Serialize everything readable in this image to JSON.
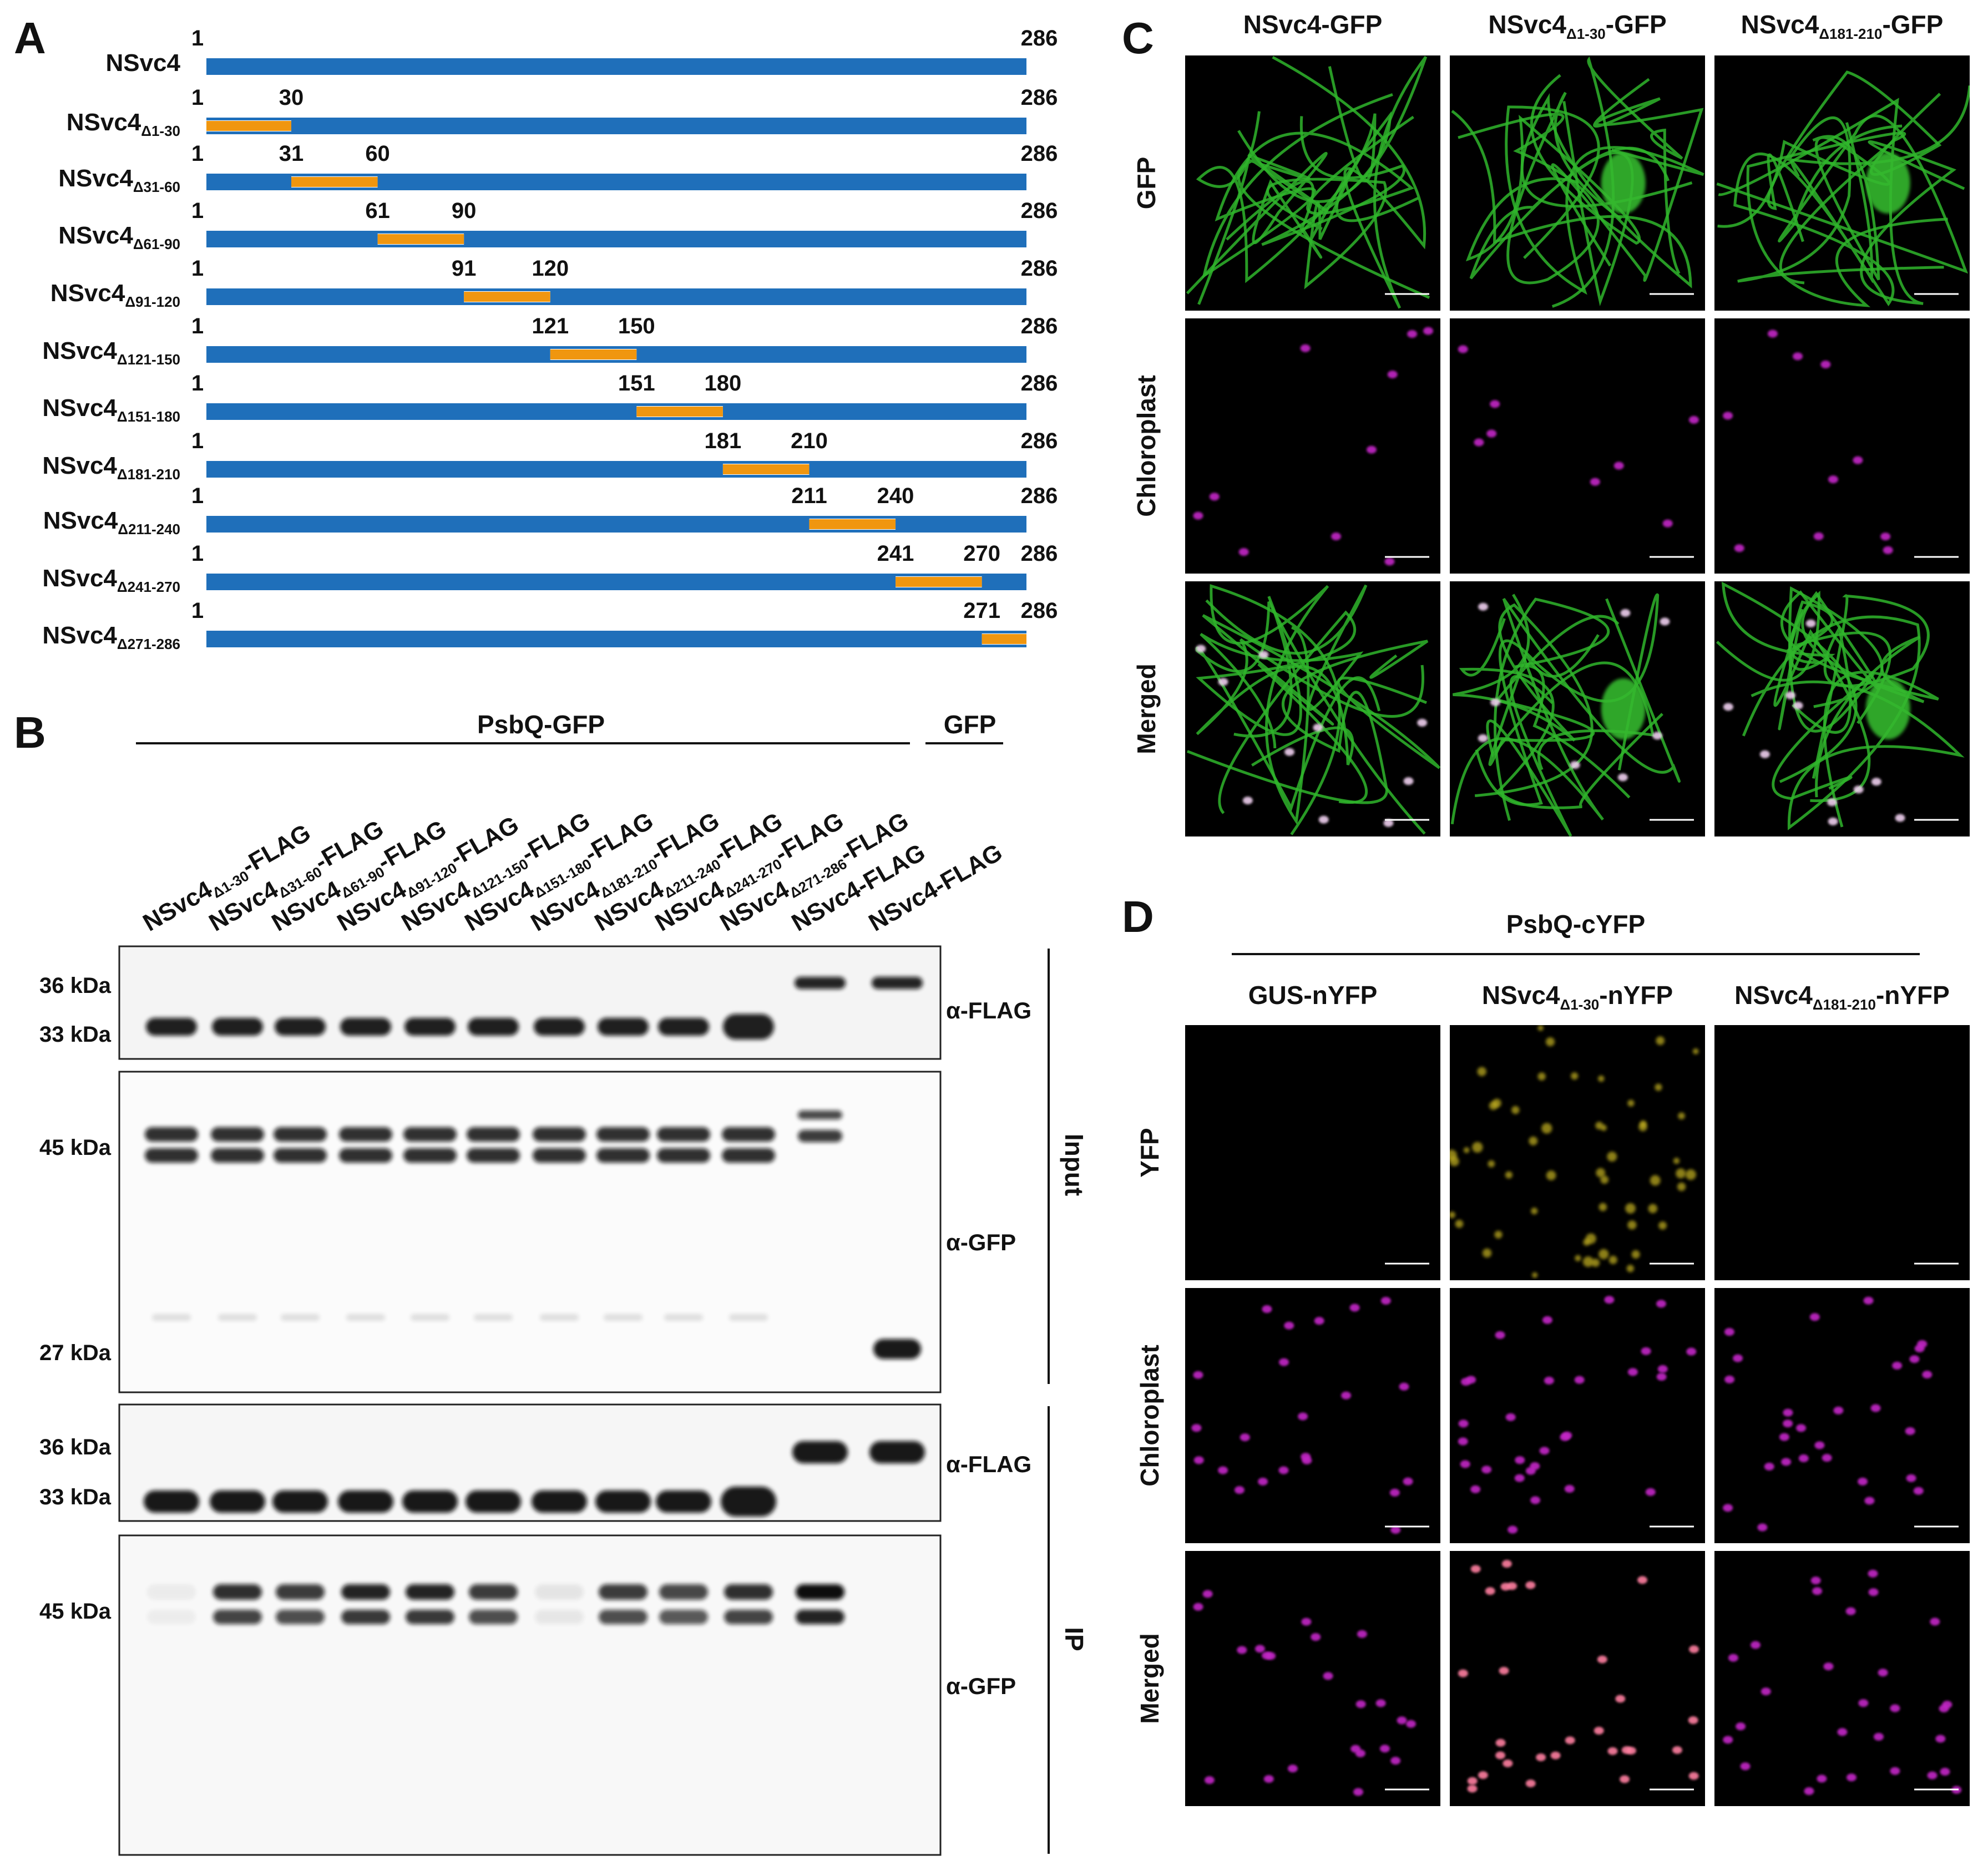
{
  "panel_letters": [
    "A",
    "B",
    "C",
    "D"
  ],
  "panelA": {
    "rows": [
      {
        "name": "NSvc4",
        "sub": "",
        "start": 1,
        "end": 286,
        "del": null
      },
      {
        "name": "NSvc4",
        "sub": "Δ1-30",
        "start": 1,
        "end": 286,
        "del": [
          1,
          30
        ]
      },
      {
        "name": "NSvc4",
        "sub": "Δ31-60",
        "start": 1,
        "end": 286,
        "del": [
          31,
          60
        ]
      },
      {
        "name": "NSvc4",
        "sub": "Δ61-90",
        "start": 1,
        "end": 286,
        "del": [
          61,
          90
        ]
      },
      {
        "name": "NSvc4",
        "sub": "Δ91-120",
        "start": 1,
        "end": 286,
        "del": [
          91,
          120
        ]
      },
      {
        "name": "NSvc4",
        "sub": "Δ121-150",
        "start": 1,
        "end": 286,
        "del": [
          121,
          150
        ]
      },
      {
        "name": "NSvc4",
        "sub": "Δ151-180",
        "start": 1,
        "end": 286,
        "del": [
          151,
          180
        ]
      },
      {
        "name": "NSvc4",
        "sub": "Δ181-210",
        "start": 1,
        "end": 286,
        "del": [
          181,
          210
        ]
      },
      {
        "name": "NSvc4",
        "sub": "Δ211-240",
        "start": 1,
        "end": 286,
        "del": [
          211,
          240
        ]
      },
      {
        "name": "NSvc4",
        "sub": "Δ241-270",
        "start": 1,
        "end": 286,
        "del": [
          241,
          270
        ]
      },
      {
        "name": "NSvc4",
        "sub": "Δ271-286",
        "start": 1,
        "end": 286,
        "del": [
          271,
          286
        ]
      }
    ],
    "colors": {
      "protein": "#1f6fba",
      "deletion": "#f0960f"
    }
  },
  "panelB": {
    "group_psbq": "PsbQ-GFP",
    "group_gfp": "GFP",
    "lanes": [
      {
        "name": "NSvc4",
        "sub": "Δ1-30",
        "suffix": "-FLAG"
      },
      {
        "name": "NSvc4",
        "sub": "Δ31-60",
        "suffix": "-FLAG"
      },
      {
        "name": "NSvc4",
        "sub": "Δ61-90",
        "suffix": "-FLAG"
      },
      {
        "name": "NSvc4",
        "sub": "Δ91-120",
        "suffix": "-FLAG"
      },
      {
        "name": "NSvc4",
        "sub": "Δ121-150",
        "suffix": "-FLAG"
      },
      {
        "name": "NSvc4",
        "sub": "Δ151-180",
        "suffix": "-FLAG"
      },
      {
        "name": "NSvc4",
        "sub": "Δ181-210",
        "suffix": "-FLAG"
      },
      {
        "name": "NSvc4",
        "sub": "Δ211-240",
        "suffix": "-FLAG"
      },
      {
        "name": "NSvc4",
        "sub": "Δ241-270",
        "suffix": "-FLAG"
      },
      {
        "name": "NSvc4",
        "sub": "Δ271-286",
        "suffix": "-FLAG"
      },
      {
        "name": "NSvc4-FLAG",
        "sub": "",
        "suffix": ""
      },
      {
        "name": "NSvc4-FLAG",
        "sub": "",
        "suffix": ""
      }
    ],
    "blots": [
      {
        "id": "input-flag",
        "antibody": "α-FLAG",
        "markers": [
          "36 kDa",
          "33 kDa"
        ]
      },
      {
        "id": "input-gfp",
        "antibody": "α-GFP",
        "markers": [
          "45 kDa",
          "27 kDa"
        ]
      },
      {
        "id": "ip-flag",
        "antibody": "α-FLAG",
        "markers": [
          "36 kDa",
          "33 kDa"
        ]
      },
      {
        "id": "ip-gfp",
        "antibody": "α-GFP",
        "markers": [
          "45 kDa"
        ]
      }
    ],
    "section_input": "Input",
    "section_ip": "IP",
    "ip_gfp_band_strength": [
      0.05,
      0.85,
      0.8,
      0.9,
      0.9,
      0.8,
      0.08,
      0.8,
      0.75,
      0.85,
      1.0,
      0.0
    ]
  },
  "panelC": {
    "columns": [
      {
        "name": "NSvc4",
        "sub": "",
        "suffix": "-GFP"
      },
      {
        "name": "NSvc4",
        "sub": "Δ1-30",
        "suffix": "-GFP"
      },
      {
        "name": "NSvc4",
        "sub": "Δ181-210",
        "suffix": "-GFP"
      }
    ],
    "rows": [
      "GFP",
      "Chloroplast",
      "Merged"
    ]
  },
  "panelD": {
    "group": "PsbQ-cYFP",
    "columns": [
      {
        "name": "GUS-nYFP",
        "sub": "",
        "suffix": ""
      },
      {
        "name": "NSvc4",
        "sub": "Δ1-30",
        "suffix": "-nYFP"
      },
      {
        "name": "NSvc4",
        "sub": "Δ181-210",
        "suffix": "-nYFP"
      }
    ],
    "rows": [
      "YFP",
      "Chloroplast",
      "Merged"
    ]
  }
}
